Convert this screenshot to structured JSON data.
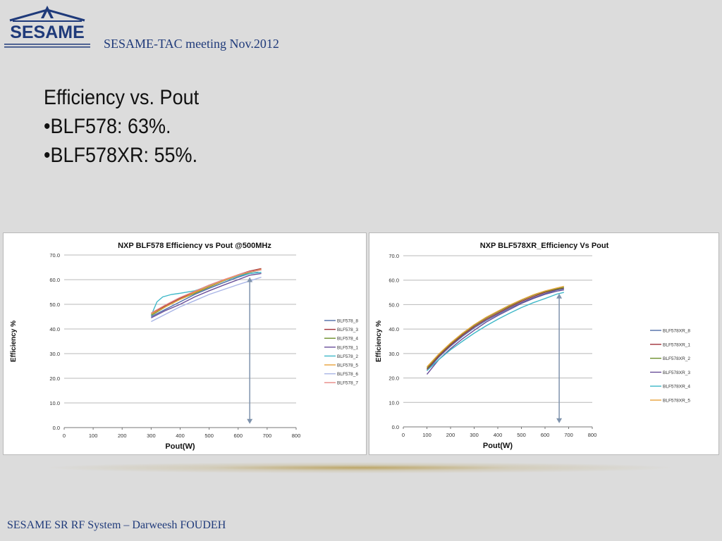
{
  "header": {
    "logo_text": "SESAME",
    "title": "SESAME-TAC meeting Nov.2012"
  },
  "bullets": {
    "line1": "Efficiency vs. Pout",
    "line2": "•BLF578: 63%.",
    "line3": "•BLF578XR: 55%."
  },
  "footer": {
    "text": "SESAME SR RF System – Darweesh FOUDEH"
  },
  "chart_data": [
    {
      "type": "line",
      "title": "NXP BLF578 Efficiency vs Pout @500MHz",
      "xlabel": "Pout(W)",
      "ylabel": "Efficiency %",
      "xlim": [
        0,
        800
      ],
      "ylim": [
        0,
        70
      ],
      "xticks": [
        "0",
        "100",
        "200",
        "300",
        "400",
        "500",
        "600",
        "700",
        "800"
      ],
      "yticks": [
        "0.0",
        "10.0",
        "20.0",
        "30.0",
        "40.0",
        "50.0",
        "60.0",
        "70.0"
      ],
      "grid": true,
      "legend_position": "right",
      "series": [
        {
          "name": "BLF578_8",
          "color": "#4f6da8",
          "points": [
            [
              300,
              45.0
            ],
            [
              350,
              48.0
            ],
            [
              400,
              51.0
            ],
            [
              450,
              54.0
            ],
            [
              500,
              56.5
            ],
            [
              550,
              58.8
            ],
            [
              600,
              61.0
            ],
            [
              640,
              62.5
            ],
            [
              670,
              63.0
            ]
          ]
        },
        {
          "name": "BLF578_3",
          "color": "#a0303a",
          "points": [
            [
              300,
              46.0
            ],
            [
              350,
              49.5
            ],
            [
              400,
              52.5
            ],
            [
              450,
              55.0
            ],
            [
              500,
              57.5
            ],
            [
              550,
              59.8
            ],
            [
              600,
              62.0
            ],
            [
              640,
              63.5
            ],
            [
              680,
              64.5
            ]
          ]
        },
        {
          "name": "BLF578_4",
          "color": "#6d8f2b",
          "points": [
            [
              300,
              45.5
            ],
            [
              350,
              49.0
            ],
            [
              400,
              52.0
            ],
            [
              450,
              54.5
            ],
            [
              500,
              57.0
            ],
            [
              550,
              59.5
            ],
            [
              600,
              61.5
            ],
            [
              640,
              63.0
            ],
            [
              680,
              64.0
            ]
          ]
        },
        {
          "name": "BLF578_1",
          "color": "#6a4f9a",
          "points": [
            [
              300,
              44.5
            ],
            [
              350,
              47.5
            ],
            [
              400,
              50.0
            ],
            [
              450,
              53.0
            ],
            [
              500,
              55.5
            ],
            [
              550,
              57.8
            ],
            [
              600,
              60.0
            ],
            [
              640,
              61.8
            ],
            [
              680,
              62.5
            ]
          ]
        },
        {
          "name": "BLF578_2",
          "color": "#3fb8c8",
          "points": [
            [
              300,
              45.5
            ],
            [
              320,
              51.0
            ],
            [
              340,
              53.0
            ],
            [
              370,
              54.0
            ],
            [
              400,
              54.5
            ],
            [
              450,
              55.5
            ],
            [
              500,
              57.5
            ],
            [
              550,
              59.5
            ],
            [
              600,
              61.5
            ],
            [
              640,
              62.5
            ],
            [
              680,
              63.0
            ]
          ]
        },
        {
          "name": "BLF578_5",
          "color": "#e8a23a",
          "points": [
            [
              300,
              46.0
            ],
            [
              350,
              49.0
            ],
            [
              400,
              52.0
            ],
            [
              450,
              54.8
            ],
            [
              500,
              57.3
            ],
            [
              550,
              59.6
            ],
            [
              600,
              61.8
            ],
            [
              640,
              63.2
            ],
            [
              680,
              64.2
            ]
          ]
        },
        {
          "name": "BLF578_6",
          "color": "#a8b4e6",
          "points": [
            [
              300,
              43.0
            ],
            [
              350,
              46.0
            ],
            [
              400,
              49.0
            ],
            [
              450,
              51.5
            ],
            [
              500,
              54.0
            ],
            [
              550,
              56.0
            ],
            [
              600,
              58.0
            ],
            [
              640,
              59.5
            ],
            [
              680,
              61.0
            ]
          ]
        },
        {
          "name": "BLF578_7",
          "color": "#e88a86",
          "points": [
            [
              300,
              46.5
            ],
            [
              350,
              49.8
            ],
            [
              400,
              52.8
            ],
            [
              450,
              55.3
            ],
            [
              500,
              57.8
            ],
            [
              550,
              60.0
            ],
            [
              600,
              62.0
            ],
            [
              640,
              63.3
            ],
            [
              680,
              64.0
            ]
          ]
        }
      ],
      "annotation": {
        "type": "double-arrow",
        "x": 640,
        "y_from": 1.5,
        "y_to": 61.0
      }
    },
    {
      "type": "line",
      "title": "NXP BLF578XR_Efficiency Vs Pout",
      "xlabel": "Pout(W)",
      "ylabel": "Efficiency %",
      "xlim": [
        0,
        800
      ],
      "ylim": [
        0,
        70
      ],
      "xticks": [
        "0",
        "100",
        "200",
        "300",
        "400",
        "500",
        "600",
        "700",
        "800"
      ],
      "yticks": [
        "0.0",
        "10.0",
        "20.0",
        "30.0",
        "40.0",
        "50.0",
        "60.0",
        "70.0"
      ],
      "grid": true,
      "legend_position": "right",
      "series": [
        {
          "name": "BLF578XR_8",
          "color": "#4f6da8",
          "points": [
            [
              100,
              23.0
            ],
            [
              150,
              28.5
            ],
            [
              200,
              33.0
            ],
            [
              250,
              37.0
            ],
            [
              300,
              40.5
            ],
            [
              350,
              43.5
            ],
            [
              400,
              46.0
            ],
            [
              450,
              48.5
            ],
            [
              500,
              50.8
            ],
            [
              550,
              52.8
            ],
            [
              600,
              54.5
            ],
            [
              650,
              56.0
            ],
            [
              680,
              56.5
            ]
          ]
        },
        {
          "name": "BLF578XR_1",
          "color": "#a0303a",
          "points": [
            [
              100,
              23.5
            ],
            [
              150,
              29.0
            ],
            [
              200,
              33.5
            ],
            [
              250,
              37.5
            ],
            [
              300,
              41.0
            ],
            [
              350,
              44.0
            ],
            [
              400,
              46.5
            ],
            [
              450,
              49.0
            ],
            [
              500,
              51.3
            ],
            [
              550,
              53.3
            ],
            [
              600,
              55.0
            ],
            [
              650,
              56.3
            ],
            [
              680,
              56.8
            ]
          ]
        },
        {
          "name": "BLF578XR_2",
          "color": "#6d8f2b",
          "points": [
            [
              100,
              24.0
            ],
            [
              150,
              29.5
            ],
            [
              200,
              34.0
            ],
            [
              250,
              38.0
            ],
            [
              300,
              41.5
            ],
            [
              350,
              44.5
            ],
            [
              400,
              47.0
            ],
            [
              450,
              49.5
            ],
            [
              500,
              51.8
            ],
            [
              550,
              53.8
            ],
            [
              600,
              55.3
            ],
            [
              650,
              56.5
            ],
            [
              680,
              57.0
            ]
          ]
        },
        {
          "name": "BLF578XR_3",
          "color": "#6a4f9a",
          "points": [
            [
              100,
              21.5
            ],
            [
              150,
              27.5
            ],
            [
              200,
              32.0
            ],
            [
              250,
              36.0
            ],
            [
              300,
              39.5
            ],
            [
              350,
              42.8
            ],
            [
              400,
              45.5
            ],
            [
              450,
              48.0
            ],
            [
              500,
              50.5
            ],
            [
              550,
              52.5
            ],
            [
              600,
              54.2
            ],
            [
              650,
              55.5
            ],
            [
              680,
              56.0
            ]
          ]
        },
        {
          "name": "BLF578XR_4",
          "color": "#3fb8c8",
          "points": [
            [
              100,
              23.0
            ],
            [
              150,
              27.5
            ],
            [
              200,
              31.5
            ],
            [
              250,
              35.0
            ],
            [
              300,
              38.3
            ],
            [
              350,
              41.3
            ],
            [
              400,
              44.0
            ],
            [
              450,
              46.5
            ],
            [
              500,
              48.8
            ],
            [
              550,
              50.8
            ],
            [
              600,
              52.5
            ],
            [
              650,
              54.3
            ],
            [
              680,
              55.0
            ]
          ]
        },
        {
          "name": "BLF578XR_5",
          "color": "#e8a23a",
          "points": [
            [
              100,
              24.5
            ],
            [
              150,
              29.8
            ],
            [
              200,
              34.3
            ],
            [
              250,
              38.3
            ],
            [
              300,
              41.8
            ],
            [
              350,
              44.8
            ],
            [
              400,
              47.3
            ],
            [
              450,
              49.8
            ],
            [
              500,
              52.0
            ],
            [
              550,
              54.0
            ],
            [
              600,
              55.6
            ],
            [
              650,
              56.8
            ],
            [
              680,
              57.5
            ]
          ]
        }
      ],
      "annotation": {
        "type": "double-arrow",
        "x": 660,
        "y_from": 1.5,
        "y_to": 54.5
      }
    }
  ]
}
